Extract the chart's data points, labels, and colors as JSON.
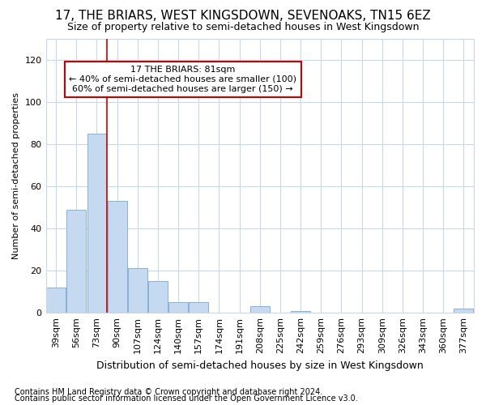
{
  "title": "17, THE BRIARS, WEST KINGSDOWN, SEVENOAKS, TN15 6EZ",
  "subtitle": "Size of property relative to semi-detached houses in West Kingsdown",
  "xlabel": "Distribution of semi-detached houses by size in West Kingsdown",
  "ylabel": "Number of semi-detached properties",
  "footnote1": "Contains HM Land Registry data © Crown copyright and database right 2024.",
  "footnote2": "Contains public sector information licensed under the Open Government Licence v3.0.",
  "categories": [
    "39sqm",
    "56sqm",
    "73sqm",
    "90sqm",
    "107sqm",
    "124sqm",
    "140sqm",
    "157sqm",
    "174sqm",
    "191sqm",
    "208sqm",
    "225sqm",
    "242sqm",
    "259sqm",
    "276sqm",
    "293sqm",
    "309sqm",
    "326sqm",
    "343sqm",
    "360sqm",
    "377sqm"
  ],
  "values": [
    12,
    49,
    85,
    53,
    21,
    15,
    5,
    5,
    0,
    0,
    3,
    0,
    1,
    0,
    0,
    0,
    0,
    0,
    0,
    0,
    2
  ],
  "bar_color": "#c5d9f0",
  "bar_edge_color": "#7ba7d0",
  "ylim": [
    0,
    130
  ],
  "yticks": [
    0,
    20,
    40,
    60,
    80,
    100,
    120
  ],
  "annotation_line1": "17 THE BRIARS: 81sqm",
  "annotation_line2": "← 40% of semi-detached houses are smaller (100)",
  "annotation_line3": "60% of semi-detached houses are larger (150) →",
  "vline_x_index": 2.5,
  "vline_color": "#cc0000",
  "background_color": "#ffffff",
  "grid_color": "#c8d8e8",
  "title_fontsize": 11,
  "subtitle_fontsize": 9,
  "xlabel_fontsize": 9,
  "ylabel_fontsize": 8,
  "tick_fontsize": 8,
  "annot_fontsize": 8,
  "footnote_fontsize": 7
}
